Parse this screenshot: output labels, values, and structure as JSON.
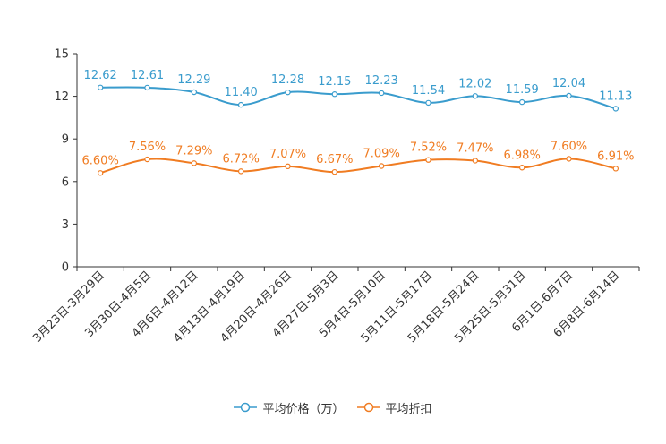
{
  "chart_data": {
    "type": "line",
    "categories": [
      "3月23日-3月29日",
      "3月30日-4月5日",
      "4月6日-4月12日",
      "4月13日-4月19日",
      "4月20日-4月26日",
      "4月27日-5月3日",
      "5月4日-5月10日",
      "5月11日-5月17日",
      "5月18日-5月24日",
      "5月25日-5月31日",
      "6月1日-6月7日",
      "6月8日-6月14日"
    ],
    "ylim": [
      0,
      15
    ],
    "yticks": [
      0,
      3,
      6,
      9,
      12,
      15
    ],
    "series": [
      {
        "name": "平均价格（万）",
        "color": "#3a9ccd",
        "values": [
          12.62,
          12.61,
          12.29,
          11.4,
          12.28,
          12.15,
          12.23,
          11.54,
          12.02,
          11.59,
          12.04,
          11.13
        ],
        "labels": [
          "12.62",
          "12.61",
          "12.29",
          "11.40",
          "12.28",
          "12.15",
          "12.23",
          "11.54",
          "12.02",
          "11.59",
          "12.04",
          "11.13"
        ]
      },
      {
        "name": "平均折扣",
        "color": "#f07c22",
        "values": [
          6.6,
          7.56,
          7.29,
          6.72,
          7.07,
          6.67,
          7.09,
          7.52,
          7.47,
          6.98,
          7.6,
          6.91
        ],
        "labels": [
          "6.60%",
          "7.56%",
          "7.29%",
          "6.72%",
          "7.07%",
          "6.67%",
          "7.09%",
          "7.52%",
          "7.47%",
          "6.98%",
          "7.60%",
          "6.91%"
        ]
      }
    ],
    "legend_position": "bottom-center"
  }
}
